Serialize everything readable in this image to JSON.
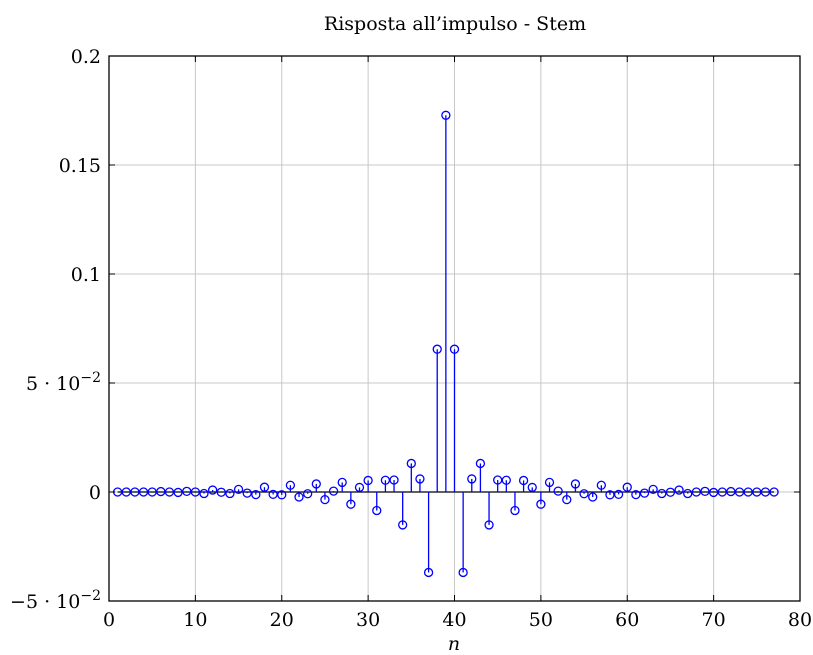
{
  "chart_data": {
    "type": "stem",
    "title": "Risposta all’impulso - Stem",
    "xlabel": "n",
    "ylabel": "",
    "xlim": [
      0,
      80
    ],
    "ylim": [
      -0.05,
      0.2
    ],
    "xticks": [
      0,
      10,
      20,
      30,
      40,
      50,
      60,
      70,
      80
    ],
    "xtick_labels": [
      "0",
      "10",
      "20",
      "30",
      "40",
      "50",
      "60",
      "70",
      "80"
    ],
    "yticks": [
      -0.05,
      0,
      0.05,
      0.1,
      0.15,
      0.2
    ],
    "ytick_labels": [
      {
        "value": -0.05,
        "mantissa": "−5 · 10",
        "exp": "−2"
      },
      {
        "value": 0,
        "mantissa": "0",
        "exp": ""
      },
      {
        "value": 0.05,
        "mantissa": "5 · 10",
        "exp": "−2"
      },
      {
        "value": 0.1,
        "mantissa": "0.1",
        "exp": ""
      },
      {
        "value": 0.15,
        "mantissa": "0.15",
        "exp": ""
      },
      {
        "value": 0.2,
        "mantissa": "0.2",
        "exp": ""
      }
    ],
    "grid": true,
    "series": [
      {
        "color": "#0000ff",
        "x": [
          1,
          2,
          3,
          4,
          5,
          6,
          7,
          8,
          9,
          10,
          11,
          12,
          13,
          14,
          15,
          16,
          17,
          18,
          19,
          20,
          21,
          22,
          23,
          24,
          25,
          26,
          27,
          28,
          29,
          30,
          31,
          32,
          33,
          34,
          35,
          36,
          37,
          38,
          39,
          40,
          41,
          42,
          43,
          44,
          45,
          46,
          47,
          48,
          49,
          50,
          51,
          52,
          53,
          54,
          55,
          56,
          57,
          58,
          59,
          60,
          61,
          62,
          63,
          64,
          65,
          66,
          67,
          68,
          69,
          70,
          71,
          72,
          73,
          74,
          75,
          76,
          77
        ],
        "y": [
          0,
          0,
          0,
          0,
          0,
          0.0002,
          0,
          -0.0002,
          0.0003,
          0,
          -0.0007,
          0.0009,
          -0.0001,
          -0.0007,
          0.0012,
          -0.0005,
          -0.0012,
          0.0022,
          -0.0011,
          -0.0013,
          0.0031,
          -0.0023,
          -0.0008,
          0.0037,
          -0.0035,
          0.0004,
          0.0044,
          -0.0056,
          0.0021,
          0.0053,
          -0.0085,
          0.0054,
          0.0055,
          -0.0151,
          0.0131,
          0.006,
          -0.0369,
          0.0655,
          0.1728,
          0.0655,
          -0.0369,
          0.006,
          0.0131,
          -0.0151,
          0.0055,
          0.0054,
          -0.0085,
          0.0053,
          0.0021,
          -0.0056,
          0.0044,
          0.0004,
          -0.0035,
          0.0037,
          -0.0008,
          -0.0023,
          0.0031,
          -0.0013,
          -0.0011,
          0.0022,
          -0.0012,
          -0.0005,
          0.0012,
          -0.0007,
          -0.0001,
          0.0009,
          -0.0007,
          0,
          0.0003,
          -0.0002,
          0,
          0.0002,
          0,
          0,
          0,
          0,
          0
        ]
      }
    ]
  }
}
